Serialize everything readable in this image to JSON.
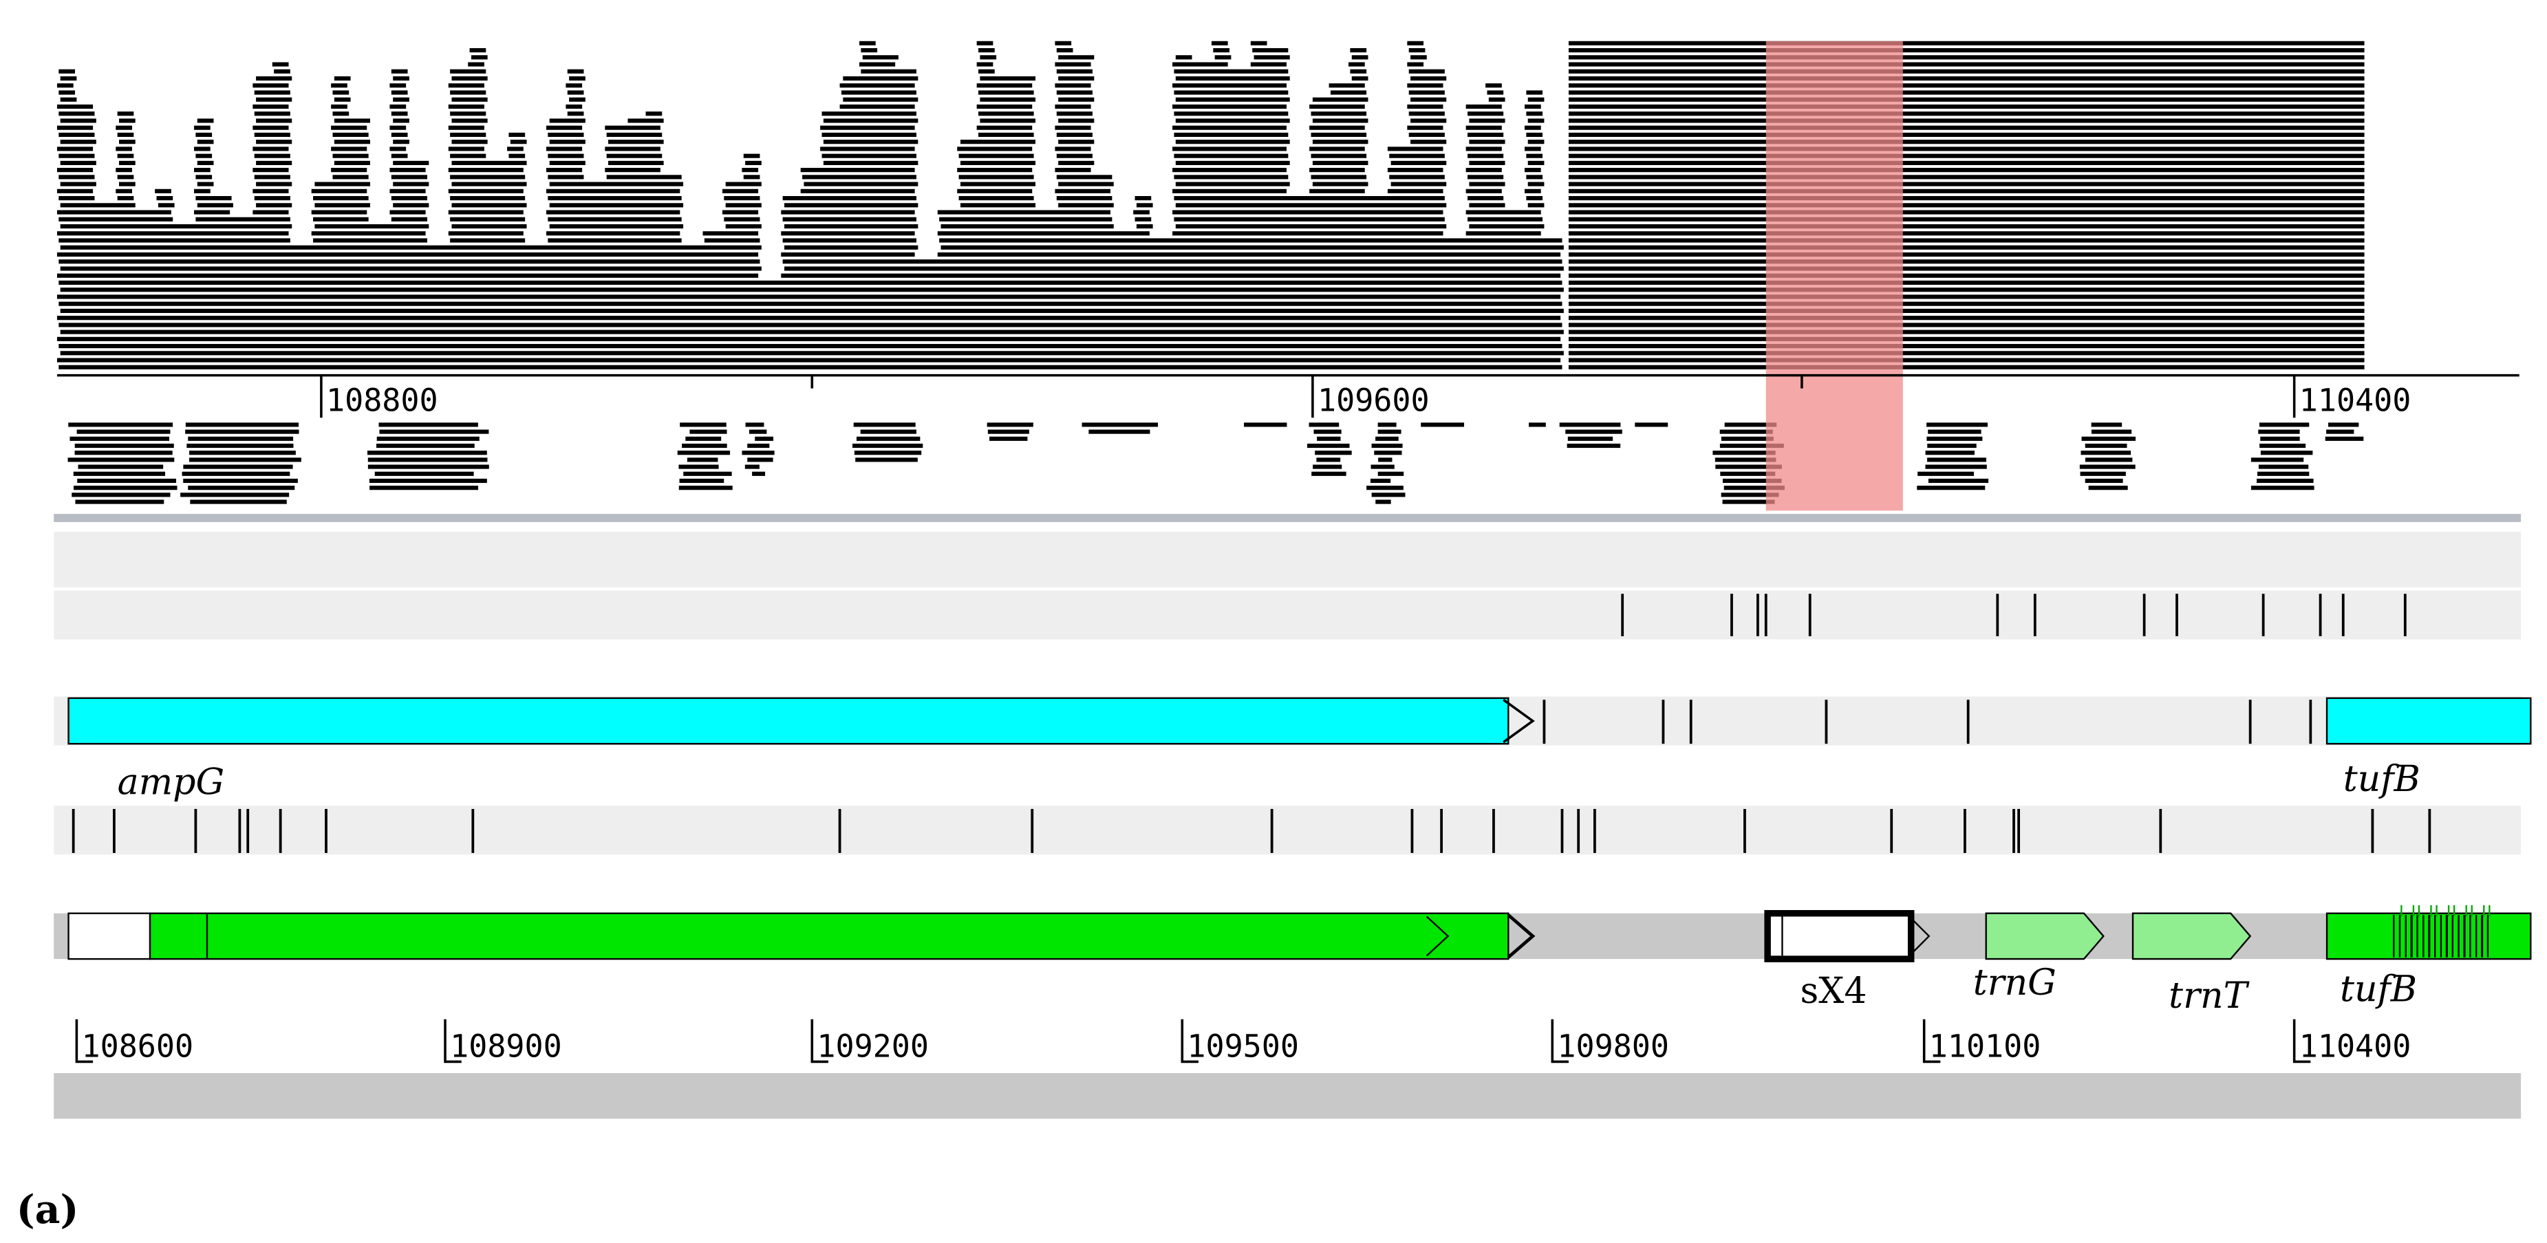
{
  "ruler_top": {
    "labels": [
      "108800",
      "109600",
      "110400"
    ]
  },
  "ruler_bottom": {
    "labels": [
      "108600",
      "108900",
      "109200",
      "109500",
      "109800",
      "110100",
      "110400"
    ]
  },
  "features": [
    {
      "label": "ampG"
    },
    {
      "label": "tufB"
    },
    {
      "label": "sX4"
    },
    {
      "label": "trnG"
    },
    {
      "label": "trnT"
    },
    {
      "label": "tufB"
    }
  ],
  "panel_label": "(a)"
}
